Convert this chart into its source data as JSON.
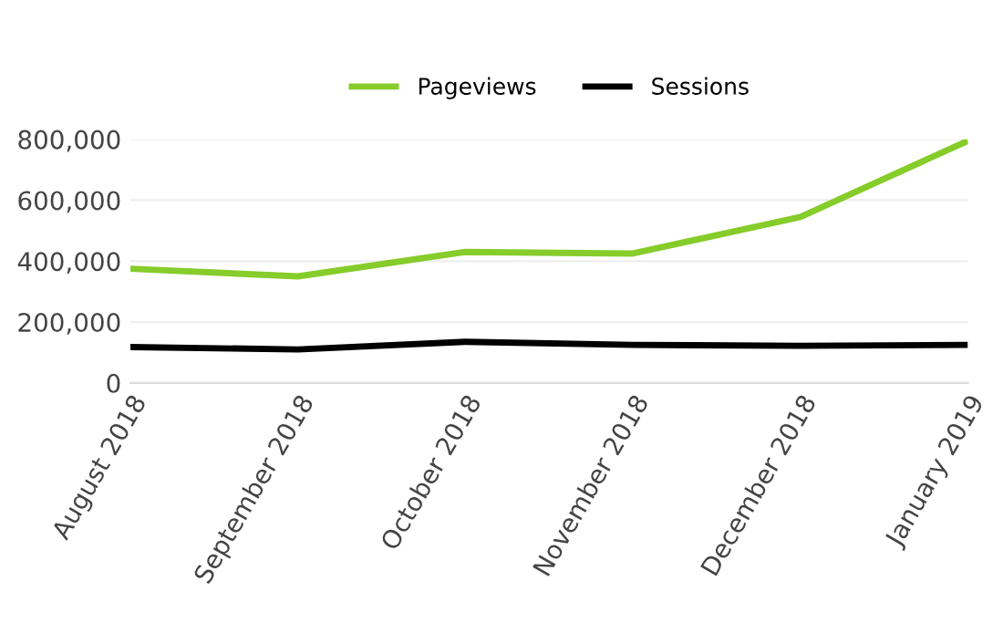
{
  "chart_data": {
    "type": "line",
    "categories": [
      "August 2018",
      "September 2018",
      "October 2018",
      "November 2018",
      "December 2018",
      "January 2019"
    ],
    "series": [
      {
        "name": "Pageviews",
        "color": "#86cc2a",
        "values": [
          375000,
          350000,
          430000,
          425000,
          545000,
          795000
        ]
      },
      {
        "name": "Sessions",
        "color": "#000000",
        "values": [
          118000,
          110000,
          135000,
          125000,
          122000,
          125000
        ]
      }
    ],
    "ylim": [
      0,
      800000
    ],
    "yticks": [
      {
        "value": 0,
        "label": "0"
      },
      {
        "value": 200000,
        "label": "200,000"
      },
      {
        "value": 400000,
        "label": "400,000"
      },
      {
        "value": 600000,
        "label": "600,000"
      },
      {
        "value": 800000,
        "label": "800,000"
      }
    ],
    "grid": "y",
    "legend": "top",
    "marker": "none",
    "line_style": "solid"
  }
}
